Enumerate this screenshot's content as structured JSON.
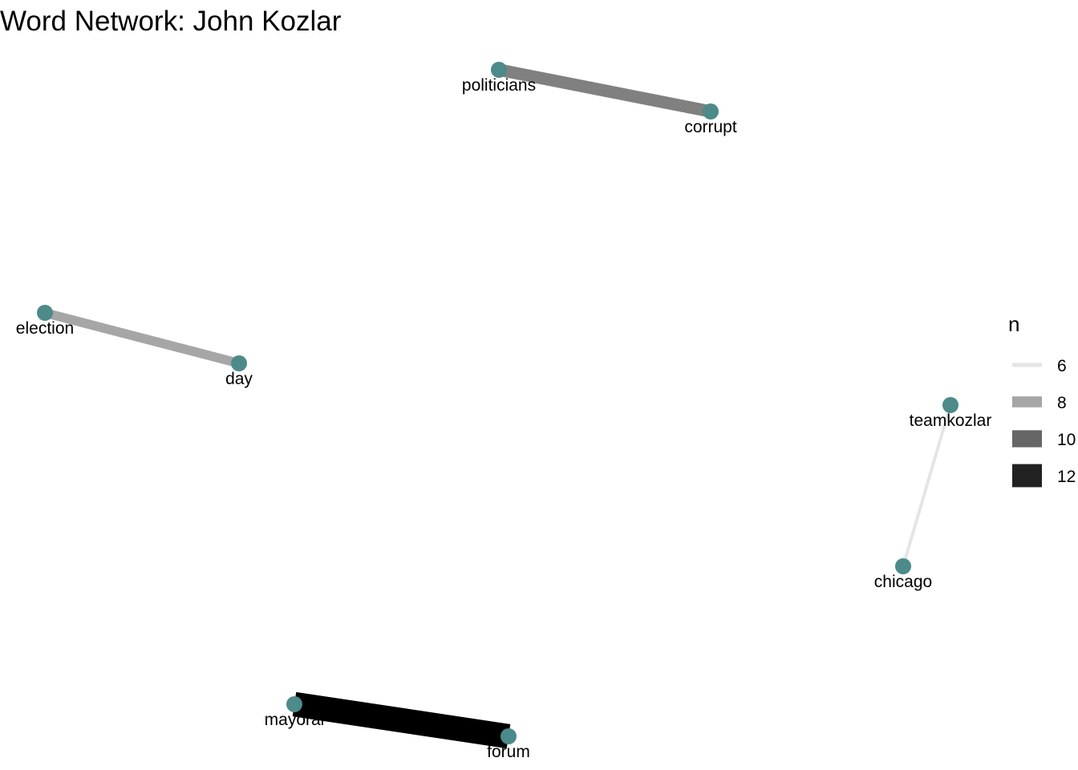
{
  "title": "Word Network: John Kozlar",
  "colors": {
    "node": "#4d8a8a",
    "background": "#ffffff",
    "text": "#000000"
  },
  "legend": {
    "title": "n",
    "items": [
      {
        "label": "6",
        "n": 6,
        "color": "#e5e5e5"
      },
      {
        "label": "8",
        "n": 8,
        "color": "#a6a6a6"
      },
      {
        "label": "10",
        "n": 10,
        "color": "#666666"
      },
      {
        "label": "12",
        "n": 12,
        "color": "#222222"
      }
    ]
  },
  "network": {
    "nodes": [
      {
        "id": "politicians",
        "label": "politicians"
      },
      {
        "id": "corrupt",
        "label": "corrupt"
      },
      {
        "id": "election",
        "label": "election"
      },
      {
        "id": "day",
        "label": "day"
      },
      {
        "id": "teamkozlar",
        "label": "teamkozlar"
      },
      {
        "id": "chicago",
        "label": "chicago"
      },
      {
        "id": "mayoral",
        "label": "mayoral"
      },
      {
        "id": "forum",
        "label": "forum"
      }
    ],
    "edges": [
      {
        "from": "politicians",
        "to": "corrupt",
        "n": 9,
        "color": "#808080"
      },
      {
        "from": "election",
        "to": "day",
        "n": 8,
        "color": "#a6a6a6"
      },
      {
        "from": "teamkozlar",
        "to": "chicago",
        "n": 6,
        "color": "#e5e5e5"
      },
      {
        "from": "mayoral",
        "to": "forum",
        "n": 13,
        "color": "#000000"
      }
    ]
  }
}
